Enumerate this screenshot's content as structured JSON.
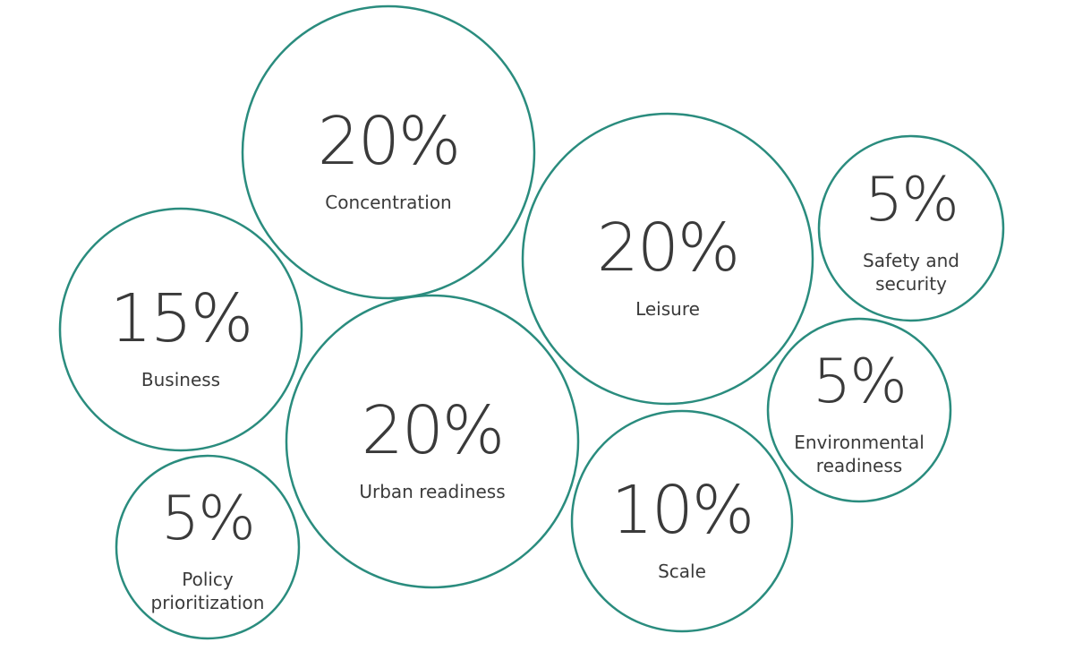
{
  "chart_data": {
    "type": "bubble",
    "categories": [
      "Concentration",
      "Leisure",
      "Safety and security",
      "Business",
      "Urban readiness",
      "Environmental readiness",
      "Scale",
      "Policy prioritization"
    ],
    "values": [
      20,
      20,
      5,
      15,
      20,
      5,
      10,
      5
    ],
    "value_labels": [
      "20%",
      "20%",
      "5%",
      "15%",
      "20%",
      "5%",
      "10%",
      "5%"
    ],
    "color": "#2a8c7e"
  }
}
